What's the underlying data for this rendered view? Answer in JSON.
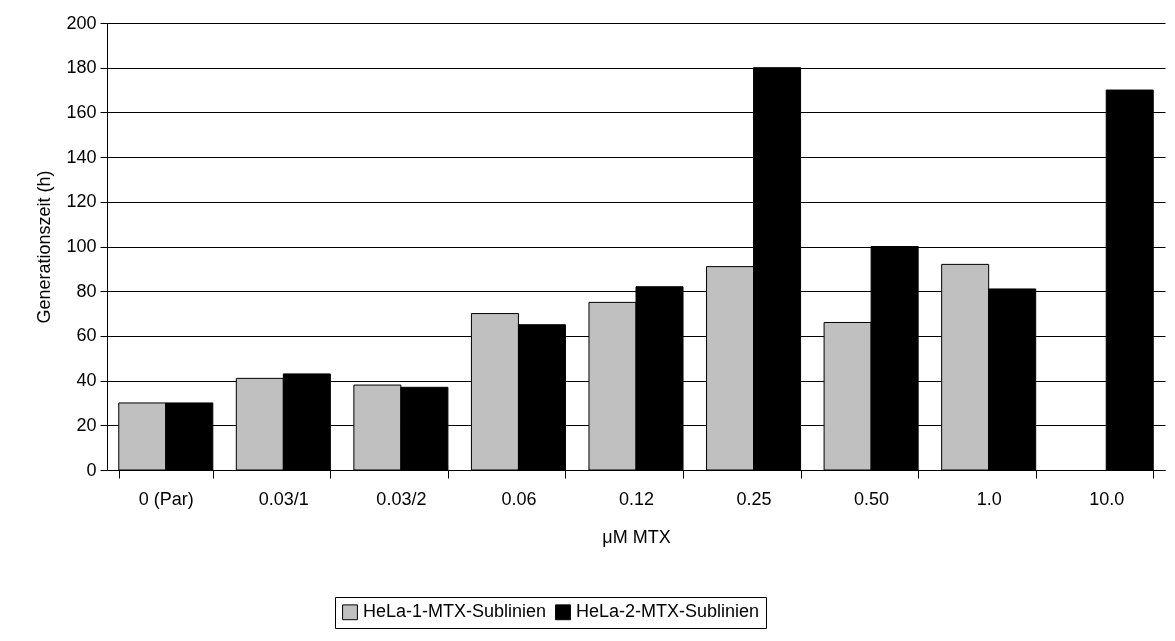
{
  "chart_data": {
    "type": "bar",
    "xlabel": "μM MTX",
    "ylabel": "Generationszeit (h)",
    "categories": [
      "0 (Par)",
      "0.03/1",
      "0.03/2",
      "0.06",
      "0.12",
      "0.25",
      "0.50",
      "1.0",
      "10.0"
    ],
    "series": [
      {
        "name": "HeLa-1-MTX-Sublinien",
        "color": "#c0c0c0",
        "values": [
          30,
          41,
          38,
          70,
          75,
          91,
          66,
          92,
          null
        ]
      },
      {
        "name": "HeLa-2-MTX-Sublinien",
        "color": "#000000",
        "values": [
          30,
          43,
          37,
          65,
          82,
          180,
          100,
          81,
          170
        ]
      }
    ],
    "ylim": [
      0,
      200
    ],
    "yticks": [
      0,
      20,
      40,
      60,
      80,
      100,
      120,
      140,
      160,
      180,
      200
    ],
    "grid": "y",
    "legend": "bottom"
  }
}
